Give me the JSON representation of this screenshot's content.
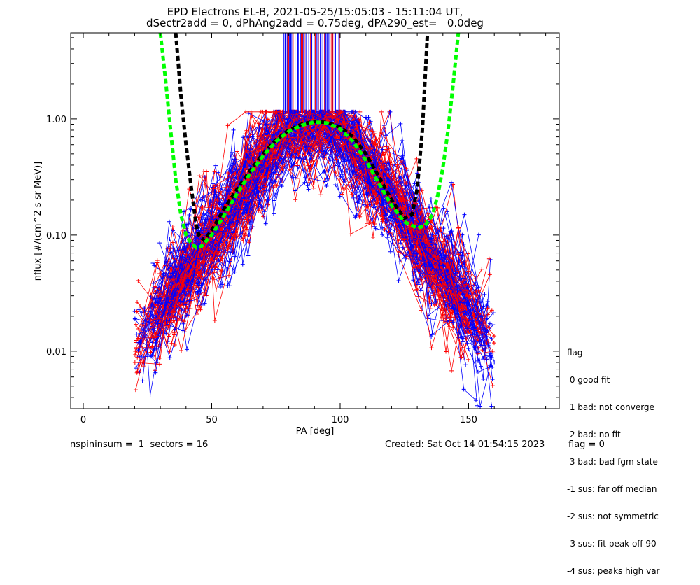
{
  "chart_data": {
    "type": "line",
    "title": "EPD Electrons EL-B, 2021-05-25/15:05:03 - 15:11:04 UT,",
    "subtitle": "dSectr2add = 0, dPhAng2add = 0.75deg, dPA290_est=   0.0deg",
    "xlabel": "PA [deg]",
    "ylabel": "nflux [#/(cm^2 s sr MeV)]",
    "xlim": [
      -5,
      185
    ],
    "ylim": [
      0.0032,
      5.5
    ],
    "yscale": "log",
    "xticks": [
      0,
      50,
      100,
      150
    ],
    "xtick_labels": [
      "0",
      "50",
      "100",
      "150"
    ],
    "yticks": [
      0.01,
      0.1,
      1.0
    ],
    "ytick_labels": [
      "0.01",
      "0.10",
      "1.00"
    ],
    "colors": {
      "up": "#ff0000",
      "down": "#0000ff",
      "fit_black": "#000000",
      "fit_green": "#00ff00"
    },
    "fit_curves": [
      {
        "color": "black",
        "x": [
          36,
          38,
          40,
          42,
          44,
          45,
          47,
          50,
          55,
          60,
          65,
          70,
          75,
          80,
          85,
          90,
          95,
          100,
          105,
          110,
          115,
          120,
          125,
          128,
          130,
          132,
          134
        ],
        "y": [
          5.5,
          1.6,
          0.6,
          0.26,
          0.12,
          0.1,
          0.09,
          0.11,
          0.17,
          0.25,
          0.36,
          0.5,
          0.66,
          0.8,
          0.9,
          0.95,
          0.93,
          0.85,
          0.7,
          0.5,
          0.32,
          0.2,
          0.14,
          0.15,
          0.25,
          0.8,
          5.5
        ]
      },
      {
        "color": "green",
        "x": [
          30,
          32,
          34,
          36,
          38,
          40,
          42,
          44,
          46,
          50,
          55,
          60,
          65,
          70,
          75,
          80,
          85,
          90,
          95,
          100,
          105,
          110,
          115,
          120,
          125,
          130,
          133,
          136,
          138,
          140,
          142,
          144,
          146
        ],
        "y": [
          5.5,
          2.2,
          0.8,
          0.3,
          0.15,
          0.1,
          0.085,
          0.078,
          0.08,
          0.1,
          0.15,
          0.23,
          0.34,
          0.48,
          0.64,
          0.78,
          0.88,
          0.94,
          0.92,
          0.82,
          0.64,
          0.44,
          0.28,
          0.18,
          0.13,
          0.115,
          0.12,
          0.15,
          0.22,
          0.38,
          0.8,
          2.0,
          5.5
        ]
      }
    ],
    "peak_lines": {
      "x_start": 78,
      "x_end": 100,
      "y_bottom": 1.12,
      "y_top": 5.5
    }
  },
  "legend": {
    "title": "flag",
    "items": [
      " 0 good fit",
      " 1 bad: not converge",
      " 2 bad: no fit",
      " 3 bad: bad fgm state",
      "-1 sus: far off median",
      "-2 sus: not symmetric",
      "-3 sus: fit peak off 90",
      "-4 sus: peaks high var"
    ]
  },
  "footer": {
    "left": "nspininsum =  1  sectors = 16",
    "created": "Created: Sat Oct 14 01:54:15 2023",
    "flag": "flag = 0"
  }
}
